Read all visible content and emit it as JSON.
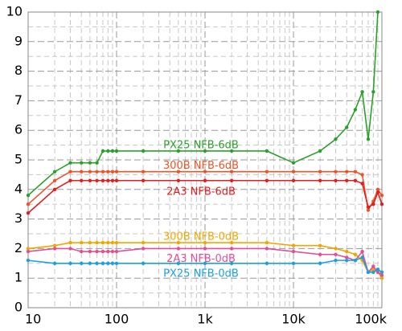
{
  "chart_data": {
    "type": "line",
    "xscale": "log",
    "grid": true,
    "minor_grid": true,
    "x": [
      10,
      20,
      30,
      40,
      50,
      60,
      70,
      80,
      90,
      100,
      200,
      500,
      1000,
      2000,
      5000,
      10000,
      20000,
      30000,
      40000,
      50000,
      60000,
      70000,
      80000,
      90000,
      100000
    ],
    "xlim": [
      10,
      100000
    ],
    "xticks": [
      10,
      100,
      {
        "value": 1000,
        "label": "1k"
      },
      {
        "value": 10000,
        "label": "10k"
      },
      {
        "value": 100000,
        "label": "100k"
      }
    ],
    "ylim": [
      0,
      10
    ],
    "yticks": [
      0,
      1,
      2,
      3,
      4,
      5,
      6,
      7,
      8,
      9,
      10
    ],
    "series": [
      {
        "name": "PX25 NFB-6dB",
        "color": "#2ca02c",
        "values": [
          3.8,
          4.6,
          4.9,
          4.9,
          4.9,
          4.9,
          5.3,
          5.3,
          5.3,
          5.3,
          5.3,
          5.3,
          5.3,
          5.3,
          5.3,
          4.9,
          5.3,
          5.7,
          6.1,
          6.7,
          7.3,
          5.7,
          7.3,
          10,
          null
        ]
      },
      {
        "name": "300B NFB-6dB",
        "color": "#e8562a",
        "values": [
          3.5,
          4.3,
          4.6,
          4.6,
          4.6,
          4.6,
          4.6,
          4.6,
          4.6,
          4.6,
          4.6,
          4.6,
          4.6,
          4.6,
          4.6,
          4.6,
          4.6,
          4.6,
          4.6,
          4.6,
          4.5,
          3.3,
          3.6,
          4.0,
          3.8
        ]
      },
      {
        "name": "2A3 NFB-6dB",
        "color": "#e02020",
        "values": [
          3.2,
          4.0,
          4.3,
          4.3,
          4.3,
          4.3,
          4.3,
          4.3,
          4.3,
          4.3,
          4.3,
          4.3,
          4.3,
          4.3,
          4.3,
          4.3,
          4.3,
          4.3,
          4.3,
          4.3,
          4.2,
          3.4,
          3.5,
          3.9,
          3.5
        ]
      },
      {
        "name": "300B NFB-0dB",
        "color": "#f0a800",
        "values": [
          2.0,
          2.1,
          2.2,
          2.2,
          2.2,
          2.2,
          2.2,
          2.2,
          2.2,
          2.2,
          2.2,
          2.2,
          2.2,
          2.2,
          2.2,
          2.1,
          2.1,
          2.0,
          1.9,
          1.8,
          1.6,
          1.2,
          1.3,
          1.2,
          1.0
        ]
      },
      {
        "name": "2A3 NFB-0dB",
        "color": "#e0509a",
        "values": [
          1.9,
          2.0,
          2.0,
          1.9,
          1.9,
          1.9,
          1.9,
          1.9,
          1.9,
          1.9,
          2.0,
          2.0,
          2.0,
          2.0,
          2.0,
          1.9,
          1.8,
          1.8,
          1.7,
          1.6,
          1.9,
          1.2,
          1.4,
          1.2,
          1.1
        ]
      },
      {
        "name": "PX25 NFB-0dB",
        "color": "#1aa0e0",
        "values": [
          1.6,
          1.5,
          1.5,
          1.5,
          1.5,
          1.5,
          1.5,
          1.5,
          1.5,
          1.5,
          1.5,
          1.5,
          1.5,
          1.5,
          1.5,
          1.5,
          1.5,
          1.6,
          1.6,
          1.6,
          1.7,
          1.2,
          1.2,
          1.3,
          1.2
        ]
      }
    ]
  }
}
